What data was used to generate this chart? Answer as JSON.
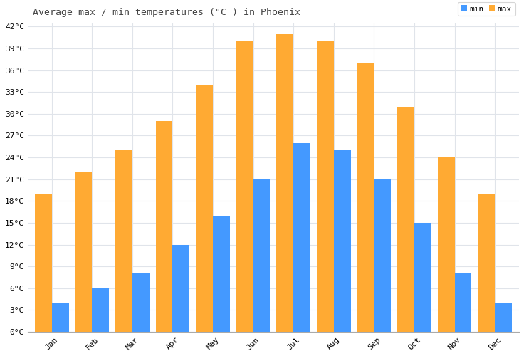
{
  "title": "Average max / min temperatures (°C ) in Phoenix",
  "months": [
    "Jan",
    "Feb",
    "Mar",
    "Apr",
    "May",
    "Jun",
    "Jul",
    "Aug",
    "Sep",
    "Oct",
    "Nov",
    "Dec"
  ],
  "min_temps": [
    4,
    6,
    8,
    12,
    16,
    21,
    26,
    25,
    21,
    15,
    8,
    4
  ],
  "max_temps": [
    19,
    22,
    25,
    29,
    34,
    40,
    41,
    40,
    37,
    31,
    24,
    19
  ],
  "min_color": "#4499ff",
  "max_color": "#ffaa33",
  "ylim": [
    0,
    42
  ],
  "ytick_step": 3,
  "background_color": "#ffffff",
  "grid_color": "#e0e4ea",
  "legend_min": "min",
  "legend_max": "max",
  "bar_width": 0.42,
  "title_fontsize": 9.5,
  "tick_fontsize": 8
}
